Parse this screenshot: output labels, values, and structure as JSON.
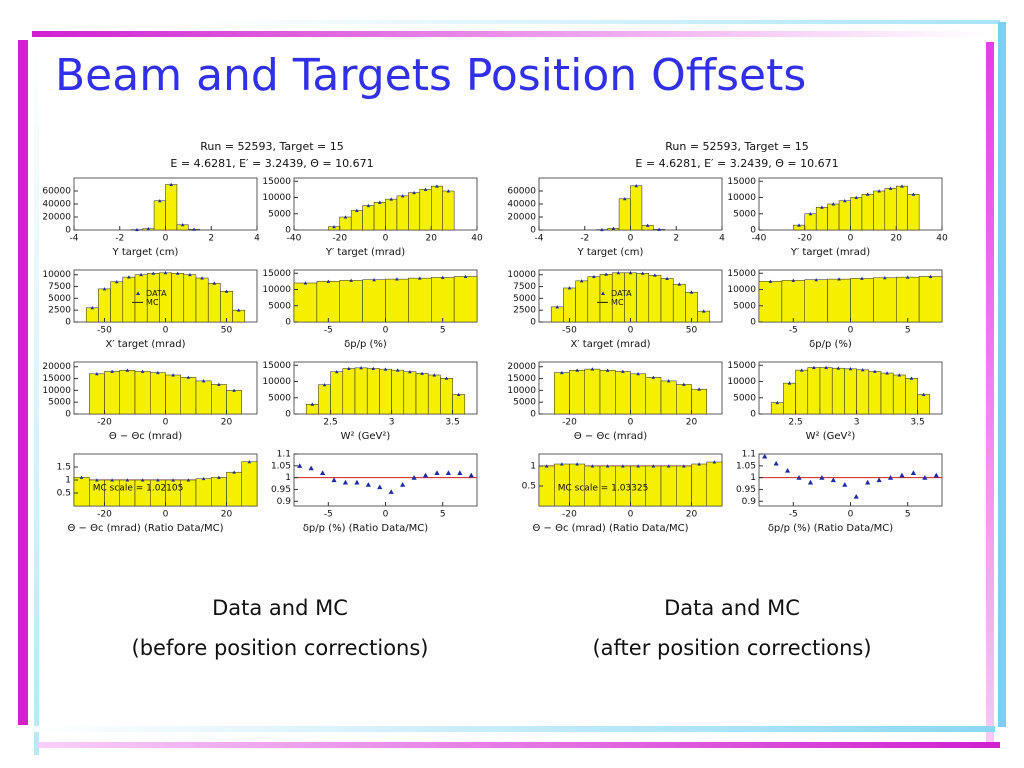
{
  "title": "Beam and Targets Position Offsets",
  "figures": [
    {
      "header": [
        "Run = 52593,  Target = 15",
        "E = 4.6281,  E′ = 3.2439,  Θ = 10.671"
      ],
      "caption": [
        "Data and MC",
        "(before position corrections)"
      ]
    },
    {
      "header": [
        "Run = 52593,  Target = 15",
        "E = 4.6281,  E′ = 3.2439,  Θ = 10.671"
      ],
      "caption": [
        "Data and MC",
        "(after position corrections)"
      ]
    }
  ],
  "chart_data": [
    {
      "type": "histogram",
      "xlabel": "Y target (cm)",
      "color": "#f5f000",
      "xlim": [
        -4,
        4
      ],
      "xticks": [
        -4,
        -2,
        0,
        2,
        4
      ],
      "ylim": [
        0,
        80000
      ],
      "yticks": [
        0,
        20000,
        40000,
        60000
      ],
      "bins": [
        -4,
        -3.5,
        -3,
        -2.5,
        -2,
        -1.5,
        -1,
        -0.5,
        0,
        0.5,
        1,
        1.5,
        2,
        2.5,
        3,
        3.5,
        4
      ],
      "values": [
        0,
        0,
        0,
        0,
        0,
        500,
        2000,
        45000,
        70000,
        8000,
        1000,
        0,
        0,
        0,
        0,
        0
      ]
    },
    {
      "type": "histogram",
      "xlabel": "Y′ target (mrad)",
      "color": "#f5f000",
      "xlim": [
        -40,
        40
      ],
      "xticks": [
        -40,
        -20,
        0,
        20,
        40
      ],
      "ylim": [
        0,
        16000
      ],
      "yticks": [
        0,
        5000,
        10000,
        15000
      ],
      "bins": [
        -40,
        -35,
        -30,
        -25,
        -20,
        -15,
        -10,
        -5,
        0,
        5,
        10,
        15,
        20,
        25,
        30,
        35,
        40
      ],
      "values": [
        0,
        0,
        0,
        1000,
        4000,
        6000,
        7500,
        8500,
        9500,
        10500,
        11500,
        12500,
        13500,
        12000,
        0,
        0
      ]
    },
    {
      "type": "histogram",
      "xlabel": "X′ target (mrad)",
      "color": "#f5f000",
      "legend": [
        "DATA",
        "MC"
      ],
      "xlim": [
        -75,
        75
      ],
      "xticks": [
        -50,
        0,
        50
      ],
      "ylim": [
        0,
        11000
      ],
      "yticks": [
        0,
        2500,
        5000,
        7500,
        10000
      ],
      "bins": [
        -75,
        -65,
        -55,
        -45,
        -35,
        -25,
        -15,
        -5,
        5,
        15,
        25,
        35,
        45,
        55,
        65,
        75
      ],
      "values": [
        0,
        3000,
        7000,
        8500,
        9500,
        10000,
        10300,
        10400,
        10300,
        10000,
        9300,
        8200,
        6500,
        2500,
        0
      ]
    },
    {
      "type": "histogram",
      "xlabel": "δp/p (%)",
      "color": "#f5f000",
      "xlim": [
        -8,
        8
      ],
      "xticks": [
        -5,
        0,
        5
      ],
      "ylim": [
        0,
        16000
      ],
      "yticks": [
        0,
        5000,
        10000,
        15000
      ],
      "bins": [
        -8,
        -6,
        -4,
        -2,
        0,
        2,
        4,
        6,
        8
      ],
      "values": [
        12000,
        12500,
        12800,
        13000,
        13200,
        13500,
        13700,
        14000
      ]
    },
    {
      "type": "histogram",
      "xlabel": "Θ − Θc (mrad)",
      "color": "#f5f000",
      "xlim": [
        -30,
        30
      ],
      "xticks": [
        -20,
        0,
        20
      ],
      "ylim": [
        0,
        22000
      ],
      "yticks": [
        0,
        5000,
        10000,
        15000,
        20000
      ],
      "bins": [
        -30,
        -25,
        -20,
        -15,
        -10,
        -5,
        0,
        5,
        10,
        15,
        20,
        25,
        30
      ],
      "values": [
        0,
        17000,
        18000,
        18500,
        18000,
        17500,
        16500,
        15500,
        14000,
        12500,
        10000,
        0
      ]
    },
    {
      "type": "histogram",
      "xlabel": "W² (GeV²)",
      "color": "#f5f000",
      "xlim": [
        2.2,
        3.7
      ],
      "xticks": [
        2.5,
        3,
        3.5
      ],
      "ylim": [
        0,
        16000
      ],
      "yticks": [
        0,
        5000,
        10000,
        15000
      ],
      "bins": [
        2.2,
        2.3,
        2.4,
        2.5,
        2.6,
        2.7,
        2.8,
        2.9,
        3,
        3.1,
        3.2,
        3.3,
        3.4,
        3.5,
        3.6,
        3.7
      ],
      "values": [
        0,
        3000,
        9000,
        13000,
        14000,
        14200,
        14000,
        13800,
        13500,
        13000,
        12500,
        12000,
        11000,
        6000,
        0
      ]
    },
    {
      "type": "histogram",
      "xlabel": "Θ − Θc (mrad)  (Ratio Data/MC)",
      "color": "#f5f000",
      "annotation": "MC scale = 1.02105",
      "hline": 1,
      "xlim": [
        -30,
        30
      ],
      "xticks": [
        -20,
        0,
        20
      ],
      "ylim": [
        0,
        2
      ],
      "yticks": [
        0.5,
        1,
        1.5
      ],
      "bins": [
        -30,
        -25,
        -20,
        -15,
        -10,
        -5,
        0,
        5,
        10,
        15,
        20,
        25,
        30
      ],
      "values": [
        1.1,
        1,
        1,
        1,
        1,
        1,
        1,
        1,
        1.05,
        1.1,
        1.3,
        1.7
      ]
    },
    {
      "type": "scatter",
      "xlabel": "δp/p (%)  (Ratio Data/MC)",
      "hline": 1,
      "xlim": [
        -8,
        8
      ],
      "xticks": [
        -5,
        0,
        5
      ],
      "ylim": [
        0.88,
        1.1
      ],
      "yticks": [
        0.9,
        0.95,
        1,
        1.05,
        1.1
      ],
      "x": [
        -7.5,
        -6.5,
        -5.5,
        -4.5,
        -3.5,
        -2.5,
        -1.5,
        -0.5,
        0.5,
        1.5,
        2.5,
        3.5,
        4.5,
        5.5,
        6.5,
        7.5
      ],
      "values": [
        1.05,
        1.04,
        1.02,
        0.99,
        0.98,
        0.98,
        0.97,
        0.96,
        0.94,
        0.97,
        1,
        1.01,
        1.02,
        1.02,
        1.02,
        1.01
      ]
    },
    {
      "type": "histogram",
      "xlabel": "Y target (cm)",
      "color": "#f5f000",
      "xlim": [
        -4,
        4
      ],
      "xticks": [
        -4,
        -2,
        0,
        2,
        4
      ],
      "ylim": [
        0,
        80000
      ],
      "yticks": [
        0,
        20000,
        40000,
        60000
      ],
      "bins": [
        -4,
        -3.5,
        -3,
        -2.5,
        -2,
        -1.5,
        -1,
        -0.5,
        0,
        0.5,
        1,
        1.5,
        2,
        2.5,
        3,
        3.5,
        4
      ],
      "values": [
        0,
        0,
        0,
        0,
        0,
        500,
        2500,
        48000,
        68000,
        7000,
        800,
        0,
        0,
        0,
        0,
        0
      ]
    },
    {
      "type": "histogram",
      "xlabel": "Y′ target (mrad)",
      "color": "#f5f000",
      "xlim": [
        -40,
        40
      ],
      "xticks": [
        -40,
        -20,
        0,
        20,
        40
      ],
      "ylim": [
        0,
        16000
      ],
      "yticks": [
        0,
        5000,
        10000,
        15000
      ],
      "bins": [
        -40,
        -35,
        -30,
        -25,
        -20,
        -15,
        -10,
        -5,
        0,
        5,
        10,
        15,
        20,
        25,
        30,
        35,
        40
      ],
      "values": [
        0,
        0,
        0,
        1500,
        5000,
        7000,
        8000,
        9000,
        10000,
        11000,
        12000,
        12800,
        13500,
        11000,
        0,
        0
      ]
    },
    {
      "type": "histogram",
      "xlabel": "X′ target (mrad)",
      "color": "#f5f000",
      "legend": [
        "DATA",
        "MC"
      ],
      "xlim": [
        -75,
        75
      ],
      "xticks": [
        -50,
        0,
        50
      ],
      "ylim": [
        0,
        11000
      ],
      "yticks": [
        0,
        2500,
        5000,
        7500,
        10000
      ],
      "bins": [
        -75,
        -65,
        -55,
        -45,
        -35,
        -25,
        -15,
        -5,
        5,
        15,
        25,
        35,
        45,
        55,
        65,
        75
      ],
      "values": [
        0,
        3200,
        7200,
        8700,
        9600,
        10100,
        10400,
        10400,
        10300,
        9900,
        9200,
        8000,
        6300,
        2300,
        0
      ]
    },
    {
      "type": "histogram",
      "xlabel": "δp/p (%)",
      "color": "#f5f000",
      "xlim": [
        -8,
        8
      ],
      "xticks": [
        -5,
        0,
        5
      ],
      "ylim": [
        0,
        16000
      ],
      "yticks": [
        0,
        5000,
        10000,
        15000
      ],
      "bins": [
        -8,
        -6,
        -4,
        -2,
        0,
        2,
        4,
        6,
        8
      ],
      "values": [
        12500,
        12800,
        13000,
        13200,
        13400,
        13600,
        13800,
        14000
      ]
    },
    {
      "type": "histogram",
      "xlabel": "Θ − Θc (mrad)",
      "color": "#f5f000",
      "xlim": [
        -30,
        30
      ],
      "xticks": [
        -20,
        0,
        20
      ],
      "ylim": [
        0,
        22000
      ],
      "yticks": [
        0,
        5000,
        10000,
        15000,
        20000
      ],
      "bins": [
        -30,
        -25,
        -20,
        -15,
        -10,
        -5,
        0,
        5,
        10,
        15,
        20,
        25,
        30
      ],
      "values": [
        0,
        17500,
        18500,
        19000,
        18500,
        18000,
        17000,
        15500,
        14000,
        12500,
        10500,
        0
      ]
    },
    {
      "type": "histogram",
      "xlabel": "W² (GeV²)",
      "color": "#f5f000",
      "xlim": [
        2.2,
        3.7
      ],
      "xticks": [
        2.5,
        3,
        3.5
      ],
      "ylim": [
        0,
        16000
      ],
      "yticks": [
        0,
        5000,
        10000,
        15000
      ],
      "bins": [
        2.2,
        2.3,
        2.4,
        2.5,
        2.6,
        2.7,
        2.8,
        2.9,
        3,
        3.1,
        3.2,
        3.3,
        3.4,
        3.5,
        3.6,
        3.7
      ],
      "values": [
        0,
        3500,
        9500,
        13500,
        14300,
        14300,
        14100,
        13900,
        13600,
        13100,
        12600,
        12000,
        11000,
        6000,
        0
      ]
    },
    {
      "type": "histogram",
      "xlabel": "Θ − Θc (mrad)  (Ratio Data/MC)",
      "color": "#f5f000",
      "annotation": "MC scale = 1.03325",
      "hline": 1,
      "xlim": [
        -30,
        30
      ],
      "xticks": [
        -20,
        0,
        20
      ],
      "ylim": [
        0,
        1.3
      ],
      "yticks": [
        0.5,
        1
      ],
      "bins": [
        -30,
        -25,
        -20,
        -15,
        -10,
        -5,
        0,
        5,
        10,
        15,
        20,
        25,
        30
      ],
      "values": [
        1,
        1.05,
        1.05,
        1,
        1,
        1,
        1,
        1,
        1,
        1,
        1.05,
        1.1
      ]
    },
    {
      "type": "scatter",
      "xlabel": "δp/p (%)  (Ratio Data/MC)",
      "hline": 1,
      "xlim": [
        -8,
        8
      ],
      "xticks": [
        -5,
        0,
        5
      ],
      "ylim": [
        0.88,
        1.1
      ],
      "yticks": [
        0.9,
        0.95,
        1,
        1.05,
        1.1
      ],
      "x": [
        -7.5,
        -6.5,
        -5.5,
        -4.5,
        -3.5,
        -2.5,
        -1.5,
        -0.5,
        0.5,
        1.5,
        2.5,
        3.5,
        4.5,
        5.5,
        6.5,
        7.5
      ],
      "values": [
        1.09,
        1.06,
        1.03,
        1,
        0.98,
        1,
        0.99,
        0.97,
        0.92,
        0.98,
        0.99,
        1,
        1.01,
        1.02,
        1,
        1.01
      ]
    }
  ]
}
